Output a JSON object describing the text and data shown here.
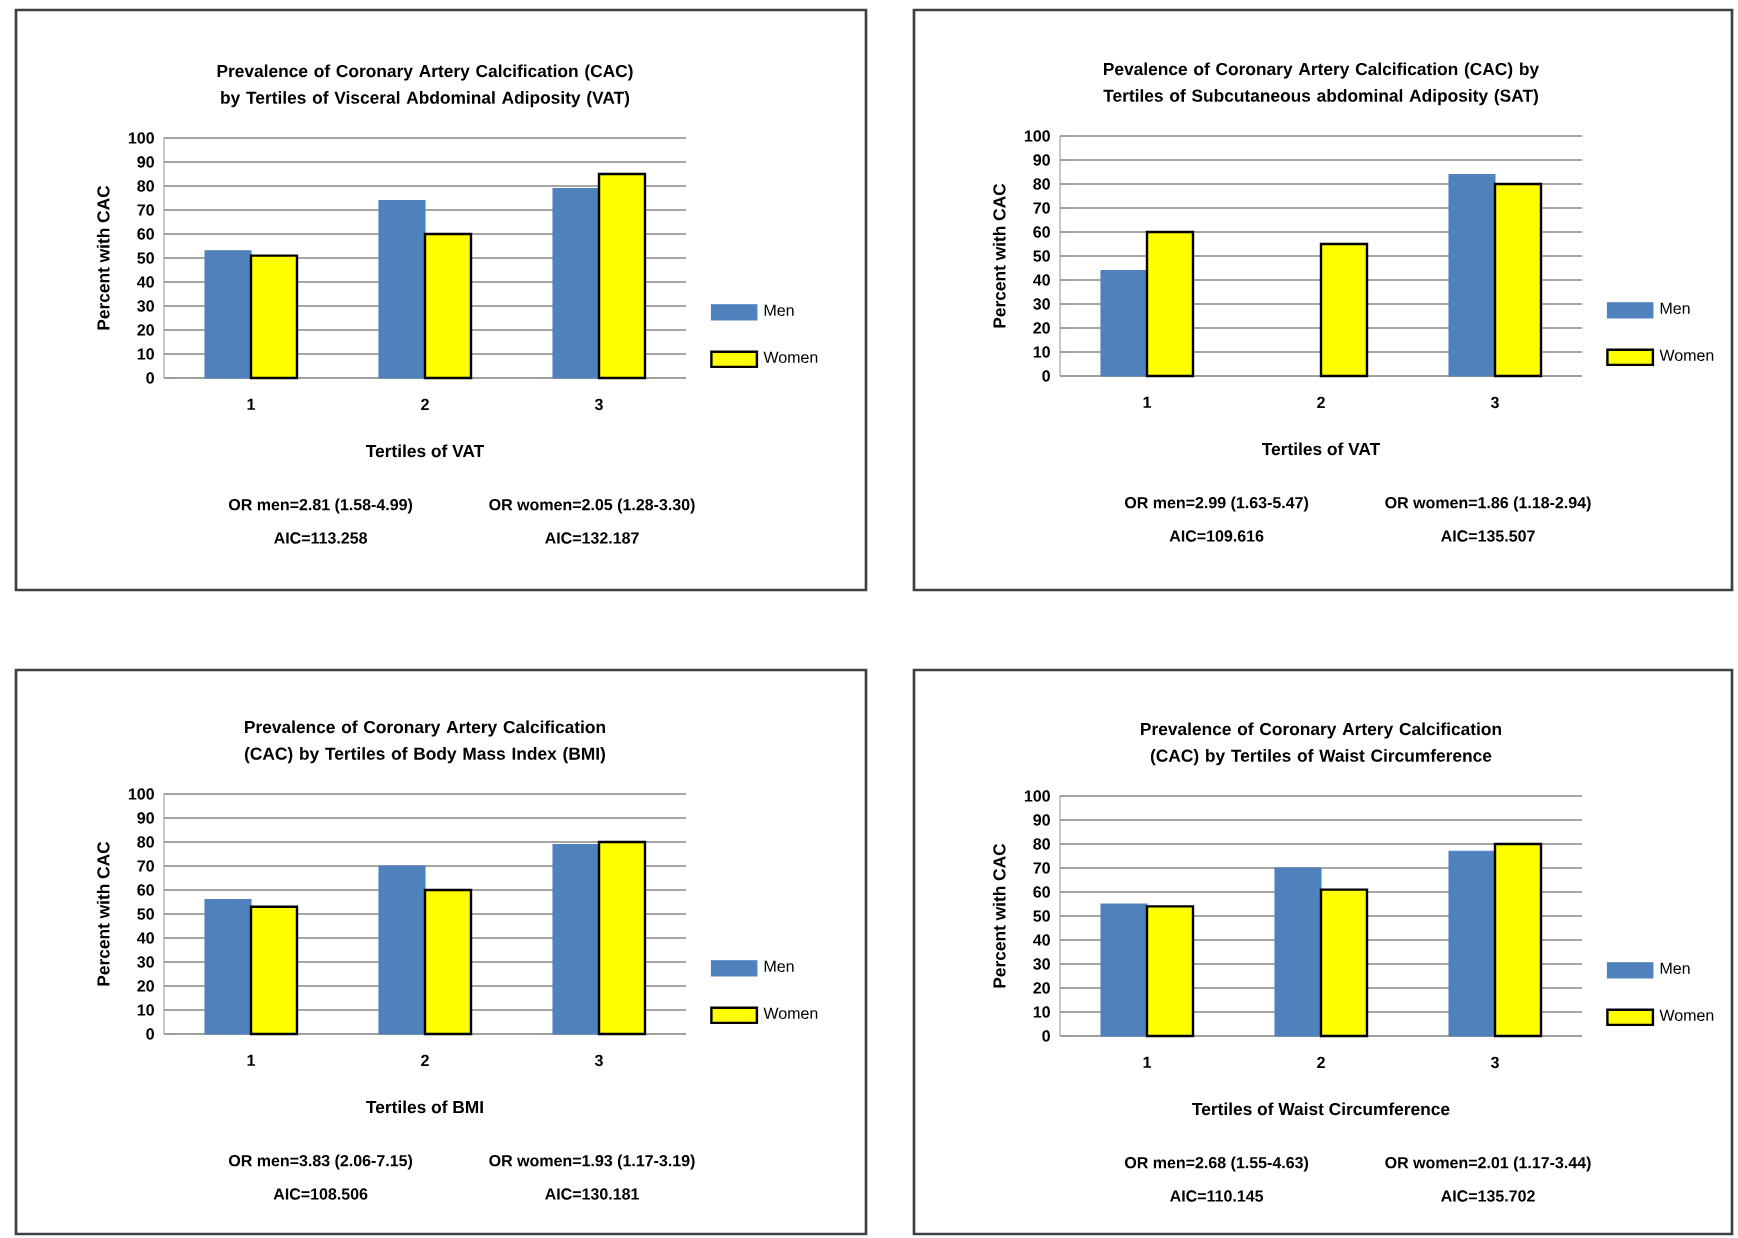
{
  "chart_data": [
    {
      "type": "bar",
      "title": "Prevalence of Coronary Artery  Calcification  (CAC) by Tertiles of Visceral Abdominal Adiposity (VAT)",
      "xlabel": "Tertiles of VAT",
      "ylabel": "Percent with CAC",
      "categories": [
        "1",
        "2",
        "3"
      ],
      "series": [
        {
          "name": "Men",
          "color": "#4f81bd",
          "values": [
            53,
            74,
            79
          ]
        },
        {
          "name": "Women",
          "color": "#ffff00",
          "values": [
            51,
            60,
            85
          ]
        }
      ],
      "ylim": [
        0,
        100
      ],
      "yticks": [
        0,
        10,
        20,
        30,
        40,
        50,
        60,
        70,
        80,
        90,
        100
      ],
      "grid": "y",
      "legend": "right",
      "annotations": [
        "OR men=2.81 (1.58-4.99)",
        "OR women=2.05 (1.28-3.30)",
        "AIC=113.258",
        "AIC=132.187"
      ]
    },
    {
      "type": "bar",
      "title": "Pevalence of Coronary Artery  Calcification  (CAC) by Tertiles of Subcutaneous abdominal Adiposity (SAT)",
      "xlabel": "Tertiles of VAT",
      "ylabel": "Percent with CAC",
      "categories": [
        "1",
        "2",
        "3"
      ],
      "series": [
        {
          "name": "Men",
          "color": "#4f81bd",
          "values": [
            44,
            null,
            84
          ]
        },
        {
          "name": "Women",
          "color": "#ffff00",
          "values": [
            60,
            55,
            80
          ]
        }
      ],
      "ylim": [
        0,
        100
      ],
      "yticks": [
        0,
        10,
        20,
        30,
        40,
        50,
        60,
        70,
        80,
        90,
        100
      ],
      "grid": "y",
      "legend": "right",
      "annotations": [
        "OR men=2.99 (1.63-5.47)",
        "OR women=1.86 (1.18-2.94)",
        "AIC=109.616",
        "AIC=135.507"
      ]
    },
    {
      "type": "bar",
      "title": "Prevalence of Coronary Artery  Calcification  (CAC) by Tertiles of Body Mass Index (BMI)",
      "xlabel": "Tertiles of BMI",
      "ylabel": "Percent with CAC",
      "categories": [
        "1",
        "2",
        "3"
      ],
      "series": [
        {
          "name": "Men",
          "color": "#4f81bd",
          "values": [
            56,
            70,
            79
          ]
        },
        {
          "name": "Women",
          "color": "#ffff00",
          "values": [
            53,
            60,
            80
          ]
        }
      ],
      "ylim": [
        0,
        100
      ],
      "yticks": [
        0,
        10,
        20,
        30,
        40,
        50,
        60,
        70,
        80,
        90,
        100
      ],
      "grid": "y",
      "legend": "right",
      "annotations": [
        "OR men=3.83 (2.06-7.15)",
        "OR women=1.93 (1.17-3.19)",
        "AIC=108.506",
        "AIC=130.181"
      ]
    },
    {
      "type": "bar",
      "title": "Prevalence of Coronary Artery Calcification (CAC) by Tertiles of Waist Circumference",
      "xlabel": "Tertiles of Waist Circumference",
      "ylabel": "Percent with CAC",
      "categories": [
        "1",
        "2",
        "3"
      ],
      "series": [
        {
          "name": "Men",
          "color": "#4f81bd",
          "values": [
            55,
            70,
            77
          ]
        },
        {
          "name": "Women",
          "color": "#ffff00",
          "values": [
            54,
            61,
            80
          ]
        }
      ],
      "ylim": [
        0,
        100
      ],
      "yticks": [
        0,
        10,
        20,
        30,
        40,
        50,
        60,
        70,
        80,
        90,
        100
      ],
      "grid": "y",
      "legend": "right",
      "annotations": [
        "OR men=2.68 (1.55-4.63)",
        "OR women=2.01 (1.17-3.44)",
        "AIC=110.145",
        "AIC=135.702"
      ]
    }
  ]
}
